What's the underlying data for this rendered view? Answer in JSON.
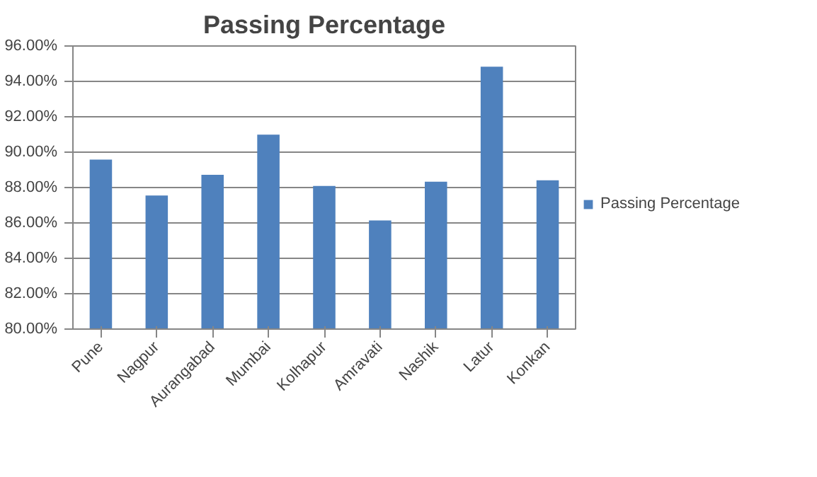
{
  "chart_data": {
    "type": "bar",
    "title": "Passing Percentage",
    "categories": [
      "Pune",
      "Nagpur",
      "Aurangabad",
      "Mumbai",
      "Kolhapur",
      "Amravati",
      "Nashik",
      "Latur",
      "Konkan"
    ],
    "series": [
      {
        "name": "Passing Percentage",
        "color": "#4f81bd",
        "values": [
          89.58,
          87.55,
          88.72,
          90.99,
          88.09,
          86.14,
          88.33,
          94.83,
          88.41
        ]
      }
    ],
    "ylim": [
      80,
      96
    ],
    "yticks": [
      {
        "value": 80,
        "label": "80.00%"
      },
      {
        "value": 82,
        "label": "82.00%"
      },
      {
        "value": 84,
        "label": "84.00%"
      },
      {
        "value": 86,
        "label": "86.00%"
      },
      {
        "value": 88,
        "label": "88.00%"
      },
      {
        "value": 90,
        "label": "90.00%"
      },
      {
        "value": 92,
        "label": "92.00%"
      },
      {
        "value": 94,
        "label": "94.00%"
      },
      {
        "value": 96,
        "label": "96.00%"
      }
    ],
    "grid": "y",
    "legend": "right"
  }
}
